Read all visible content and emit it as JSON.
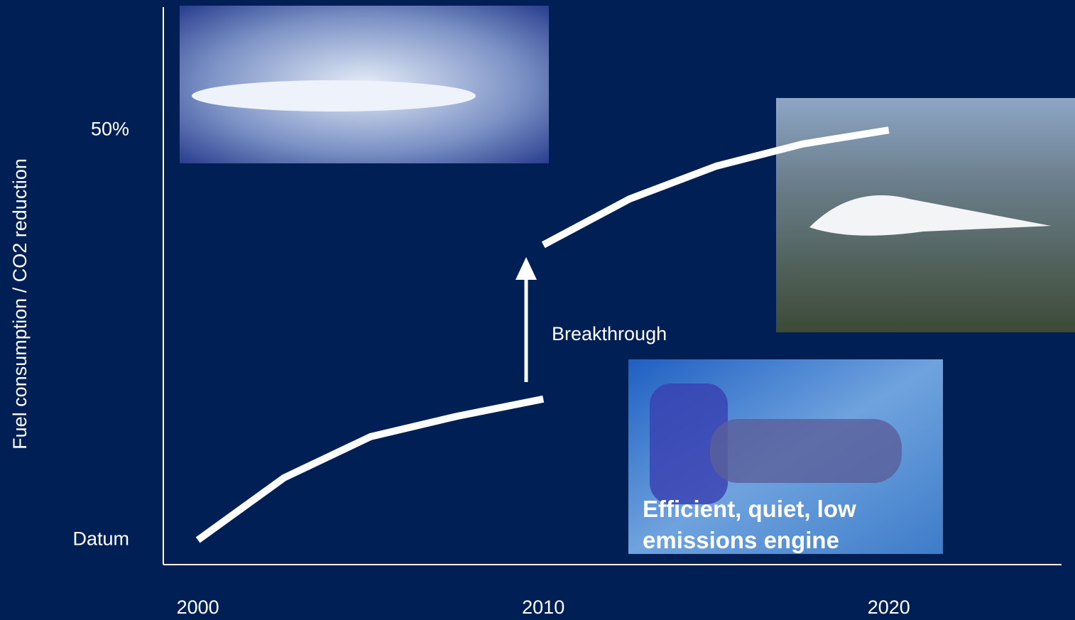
{
  "chart_data": {
    "type": "line",
    "y_label": "Fuel consumption / CO2 reduction",
    "x": [
      2000,
      2002.5,
      2005,
      2007.5,
      2010,
      2010,
      2010,
      2012.5,
      2015,
      2017.5,
      2020
    ],
    "values": [
      0,
      7.6,
      12.6,
      15.1,
      17.2,
      null,
      36,
      41.6,
      45.6,
      48.3,
      50
    ],
    "color": "#ffffff",
    "xlim": [
      1999,
      2025
    ],
    "ylim": [
      -3,
      65
    ],
    "xticks": [
      2000,
      2010,
      2020
    ],
    "yticks": [
      {
        "value": 0,
        "label": "Datum"
      },
      {
        "value": 50,
        "label": "50%"
      }
    ],
    "annotations": [
      "Breakthrough",
      "Efficient, quiet, low emissions engine"
    ]
  }
}
